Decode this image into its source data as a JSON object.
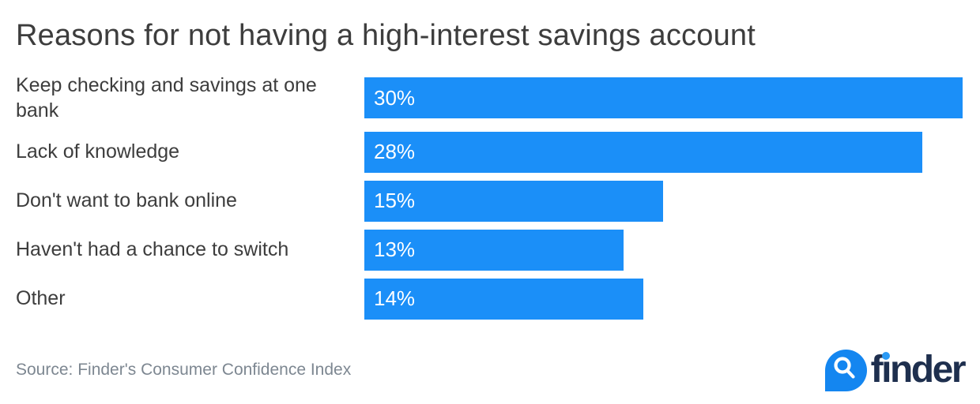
{
  "title": "Reasons for not having a high-interest savings account",
  "chart_data": {
    "type": "bar",
    "orientation": "horizontal",
    "title": "Reasons for not having a high-interest savings account",
    "categories": [
      "Keep checking and savings at one bank",
      "Lack of knowledge",
      "Don't want to bank online",
      "Haven't had a chance to switch",
      "Other"
    ],
    "values": [
      30,
      28,
      15,
      13,
      14
    ],
    "value_suffix": "%",
    "xlim": [
      0,
      30
    ],
    "grid": false,
    "legend": false,
    "bar_color": "#1b8ff8",
    "bar_label_color": "#ffffff",
    "bar_labels": [
      "30%",
      "28%",
      "15%",
      "13%",
      "14%"
    ]
  },
  "footer": {
    "source": "Source: Finder's Consumer Confidence Index",
    "logo_text": "finder"
  },
  "colors": {
    "background": "#ffffff",
    "title_text": "#3d3d3d",
    "label_text": "#3d3d3d",
    "source_text": "#7d8791",
    "logo_navy": "#1e2f4e",
    "logo_droplet_blue": "#1486f0",
    "logo_dot_blue": "#2b9af5"
  }
}
